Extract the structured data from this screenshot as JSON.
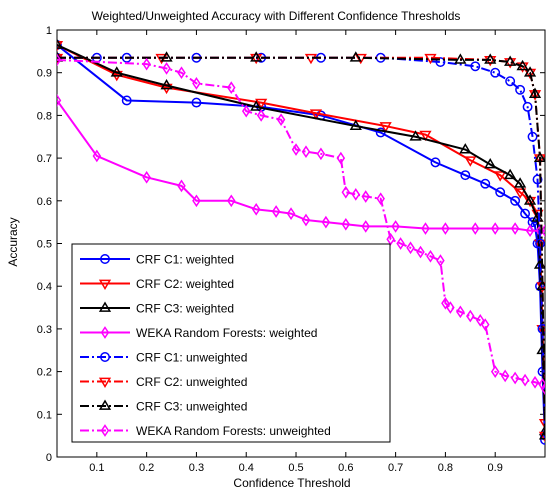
{
  "chart_data": {
    "type": "line",
    "title": "Weighted/Unweighted Accuracy with Different Confidence Thresholds",
    "xlabel": "Confidence Threshold",
    "ylabel": "Accuracy",
    "xlim": [
      0.02,
      1.0
    ],
    "ylim": [
      0,
      1
    ],
    "x_ticks": [
      0.1,
      0.2,
      0.3,
      0.4,
      0.5,
      0.6,
      0.7,
      0.8,
      0.9
    ],
    "x_tick_labels": [
      "0.1",
      "0.2",
      "0.3",
      "0.4",
      "0.5",
      "0.6",
      "0.7",
      "0.8",
      "0.9"
    ],
    "y_ticks": [
      0,
      0.1,
      0.2,
      0.3,
      0.4,
      0.5,
      0.6,
      0.7,
      0.8,
      0.9,
      1
    ],
    "y_tick_labels": [
      "0",
      "0.1",
      "0.2",
      "0.3",
      "0.4",
      "0.5",
      "0.6",
      "0.7",
      "0.8",
      "0.9",
      "1"
    ],
    "grid": false,
    "legend_position": "lower-left",
    "series": [
      {
        "name": "CRF C1: weighted",
        "color": "#0000ff",
        "line_style": "solid",
        "marker": "circle",
        "x": [
          0.02,
          0.16,
          0.3,
          0.43,
          0.55,
          0.67,
          0.78,
          0.84,
          0.88,
          0.91,
          0.94,
          0.96,
          0.975,
          0.98,
          0.985,
          0.99,
          0.995,
          1.0
        ],
        "y": [
          0.965,
          0.835,
          0.83,
          0.82,
          0.8,
          0.76,
          0.69,
          0.66,
          0.64,
          0.62,
          0.6,
          0.57,
          0.55,
          0.54,
          0.5,
          0.4,
          0.2,
          0.04
        ]
      },
      {
        "name": "CRF C2: weighted",
        "color": "#ff0000",
        "line_style": "solid",
        "marker": "triangle-down",
        "x": [
          0.02,
          0.14,
          0.24,
          0.43,
          0.54,
          0.68,
          0.76,
          0.85,
          0.91,
          0.95,
          0.97,
          0.985,
          0.99,
          0.995,
          1.0
        ],
        "y": [
          0.965,
          0.895,
          0.865,
          0.83,
          0.805,
          0.775,
          0.755,
          0.695,
          0.66,
          0.62,
          0.6,
          0.57,
          0.5,
          0.3,
          0.08
        ]
      },
      {
        "name": "CRF C3: weighted",
        "color": "#000000",
        "line_style": "solid",
        "marker": "triangle-up",
        "x": [
          0.02,
          0.14,
          0.24,
          0.42,
          0.62,
          0.74,
          0.84,
          0.89,
          0.93,
          0.95,
          0.97,
          0.985,
          0.99,
          0.995,
          1.0
        ],
        "y": [
          0.965,
          0.9,
          0.87,
          0.82,
          0.775,
          0.75,
          0.72,
          0.685,
          0.66,
          0.64,
          0.6,
          0.56,
          0.45,
          0.25,
          0.06
        ]
      },
      {
        "name": "WEKA Random Forests: weighted",
        "color": "#ff00ff",
        "line_style": "solid",
        "marker": "diamond",
        "x": [
          0.02,
          0.1,
          0.2,
          0.27,
          0.3,
          0.37,
          0.42,
          0.46,
          0.49,
          0.52,
          0.56,
          0.6,
          0.64,
          0.7,
          0.76,
          0.8,
          0.86,
          0.9,
          0.94,
          0.97,
          0.99,
          1.0
        ],
        "y": [
          0.835,
          0.705,
          0.655,
          0.635,
          0.6,
          0.6,
          0.58,
          0.575,
          0.57,
          0.555,
          0.55,
          0.545,
          0.54,
          0.54,
          0.535,
          0.535,
          0.535,
          0.535,
          0.535,
          0.53,
          0.53,
          0.53
        ]
      },
      {
        "name": "CRF C1: unweighted",
        "color": "#0000ff",
        "line_style": "dashdot",
        "marker": "circle",
        "x": [
          0.02,
          0.1,
          0.16,
          0.3,
          0.43,
          0.55,
          0.67,
          0.79,
          0.86,
          0.9,
          0.93,
          0.95,
          0.965,
          0.975,
          0.985,
          0.99,
          0.995,
          1.0
        ],
        "y": [
          0.935,
          0.935,
          0.935,
          0.935,
          0.935,
          0.935,
          0.935,
          0.925,
          0.915,
          0.9,
          0.88,
          0.86,
          0.82,
          0.75,
          0.65,
          0.5,
          0.3,
          0.05
        ]
      },
      {
        "name": "CRF C2: unweighted",
        "color": "#ff0000",
        "line_style": "dashdot",
        "marker": "triangle-down",
        "x": [
          0.02,
          0.23,
          0.42,
          0.53,
          0.63,
          0.77,
          0.89,
          0.93,
          0.955,
          0.97,
          0.98,
          0.99,
          0.995,
          1.0
        ],
        "y": [
          0.935,
          0.935,
          0.935,
          0.935,
          0.935,
          0.935,
          0.93,
          0.925,
          0.915,
          0.9,
          0.85,
          0.7,
          0.4,
          0.05
        ]
      },
      {
        "name": "CRF C3: unweighted",
        "color": "#000000",
        "line_style": "dashdot",
        "marker": "triangle-up",
        "x": [
          0.02,
          0.24,
          0.42,
          0.62,
          0.83,
          0.89,
          0.93,
          0.955,
          0.97,
          0.98,
          0.99,
          0.995,
          1.0
        ],
        "y": [
          0.935,
          0.935,
          0.935,
          0.935,
          0.93,
          0.93,
          0.925,
          0.915,
          0.9,
          0.85,
          0.7,
          0.4,
          0.05
        ]
      },
      {
        "name": "WEKA Random Forests: unweighted",
        "color": "#ff00ff",
        "line_style": "dashdot",
        "marker": "diamond",
        "x": [
          0.02,
          0.2,
          0.24,
          0.27,
          0.3,
          0.37,
          0.4,
          0.43,
          0.47,
          0.5,
          0.52,
          0.55,
          0.59,
          0.6,
          0.62,
          0.64,
          0.67,
          0.69,
          0.71,
          0.73,
          0.75,
          0.77,
          0.79,
          0.8,
          0.81,
          0.83,
          0.85,
          0.87,
          0.88,
          0.9,
          0.92,
          0.94,
          0.96,
          0.98,
          0.995,
          1.0
        ],
        "y": [
          0.93,
          0.92,
          0.91,
          0.9,
          0.875,
          0.865,
          0.81,
          0.8,
          0.79,
          0.72,
          0.715,
          0.71,
          0.7,
          0.62,
          0.615,
          0.61,
          0.605,
          0.51,
          0.5,
          0.49,
          0.48,
          0.47,
          0.46,
          0.36,
          0.35,
          0.34,
          0.33,
          0.32,
          0.31,
          0.2,
          0.19,
          0.185,
          0.18,
          0.175,
          0.17,
          0.16
        ]
      }
    ]
  }
}
